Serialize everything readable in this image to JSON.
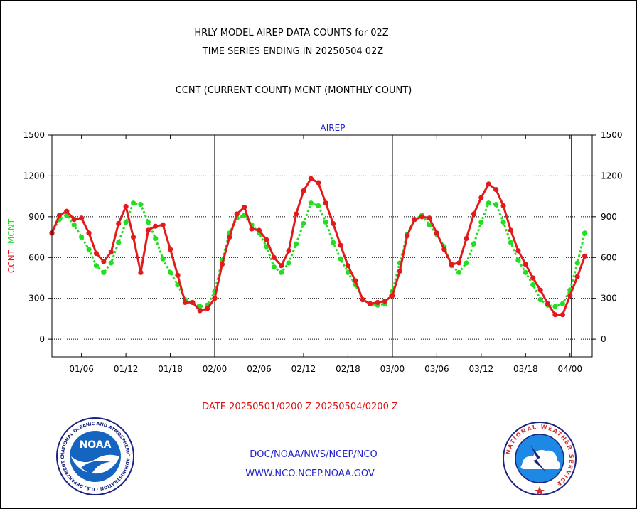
{
  "titles": {
    "line1": "HRLY MODEL AIREP DATA COUNTS for 02Z",
    "line2": "TIME SERIES ENDING IN 20250504 02Z",
    "line3": "CCNT (CURRENT COUNT) MCNT (MONTHLY COUNT)"
  },
  "footer": {
    "date_range": "DATE 20250501/0200 Z-20250504/0200 Z",
    "org_path": "DOC/NOAA/NWS/NCEP/NCO",
    "website": "WWW.NCO.NCEP.NOAA.GOV"
  },
  "logos": {
    "noaa_text": "NOAA",
    "noaa_ring": "NATIONAL OCEANIC AND ATMOSPHERIC ADMINISTRATION · U.S. DEPARTMENT OF COMMERCE ·",
    "nws_ring": "NATIONAL WEATHER SERVICE"
  },
  "colors": {
    "ccnt": "#e31a1c",
    "mcnt": "#22dd22",
    "label_blue": "#2222cc",
    "date_red": "#dd1111"
  },
  "chart_data": {
    "type": "line",
    "title": "AIREP",
    "ylabel_parts": [
      {
        "text": "CCNT",
        "color": "#e31a1c"
      },
      {
        "text": "MCNT",
        "color": "#22dd22"
      }
    ],
    "ylim": [
      -130,
      1500
    ],
    "yticks": [
      0,
      300,
      600,
      900,
      1200,
      1500
    ],
    "xlim": [
      0,
      73
    ],
    "xtick_positions": [
      4,
      10,
      16,
      22,
      28,
      34,
      40,
      46,
      52,
      58,
      64,
      70
    ],
    "xtick_labels": [
      "01/06",
      "01/12",
      "01/18",
      "02/00",
      "02/06",
      "02/12",
      "02/18",
      "03/00",
      "03/06",
      "03/12",
      "03/18",
      "04/00"
    ],
    "day_boundaries": [
      22,
      46,
      70.2
    ],
    "grid": true,
    "series": [
      {
        "name": "CCNT",
        "color": "#e31a1c",
        "x": [
          0,
          1,
          2,
          3,
          4,
          5,
          6,
          7,
          8,
          9,
          10,
          11,
          12,
          13,
          14,
          15,
          16,
          17,
          18,
          19,
          20,
          21,
          22,
          23,
          24,
          25,
          26,
          27,
          28,
          29,
          30,
          31,
          32,
          33,
          34,
          35,
          36,
          37,
          38,
          39,
          40,
          41,
          42,
          43,
          44,
          45,
          46,
          47,
          48,
          49,
          50,
          51,
          52,
          53,
          54,
          55,
          56,
          57,
          58,
          59,
          60,
          61,
          62,
          63,
          64,
          65,
          66,
          67,
          68,
          69,
          70,
          71,
          72
        ],
        "values": [
          780,
          910,
          940,
          880,
          890,
          780,
          630,
          570,
          640,
          850,
          975,
          750,
          490,
          800,
          830,
          840,
          660,
          470,
          270,
          270,
          210,
          225,
          300,
          550,
          750,
          920,
          970,
          810,
          800,
          730,
          600,
          540,
          650,
          920,
          1090,
          1180,
          1150,
          1000,
          850,
          690,
          540,
          430,
          290,
          260,
          270,
          280,
          320,
          500,
          760,
          880,
          900,
          890,
          780,
          660,
          550,
          560,
          740,
          920,
          1040,
          1140,
          1100,
          980,
          800,
          650,
          550,
          450,
          360,
          260,
          180,
          180,
          320,
          460,
          610
        ]
      },
      {
        "name": "MCNT",
        "color": "#22dd22",
        "x": [
          0,
          1,
          2,
          3,
          4,
          5,
          6,
          7,
          8,
          9,
          10,
          11,
          12,
          13,
          14,
          15,
          16,
          17,
          18,
          19,
          20,
          21,
          22,
          23,
          24,
          25,
          26,
          27,
          28,
          29,
          30,
          31,
          32,
          33,
          34,
          35,
          36,
          37,
          38,
          39,
          40,
          41,
          42,
          43,
          44,
          45,
          46,
          47,
          48,
          49,
          50,
          51,
          52,
          53,
          54,
          55,
          56,
          57,
          58,
          59,
          60,
          61,
          62,
          63,
          64,
          65,
          66,
          67,
          68,
          69,
          70,
          71,
          72
        ],
        "values": [
          780,
          880,
          910,
          840,
          750,
          660,
          540,
          490,
          560,
          710,
          860,
          1000,
          990,
          860,
          740,
          590,
          490,
          400,
          290,
          270,
          240,
          250,
          350,
          580,
          780,
          890,
          910,
          840,
          780,
          680,
          530,
          490,
          560,
          700,
          850,
          1000,
          980,
          860,
          710,
          590,
          490,
          400,
          290,
          260,
          250,
          260,
          350,
          560,
          770,
          880,
          910,
          840,
          770,
          680,
          540,
          490,
          560,
          700,
          860,
          1000,
          990,
          860,
          710,
          580,
          490,
          400,
          290,
          250,
          240,
          260,
          360,
          560,
          780
        ]
      }
    ]
  }
}
